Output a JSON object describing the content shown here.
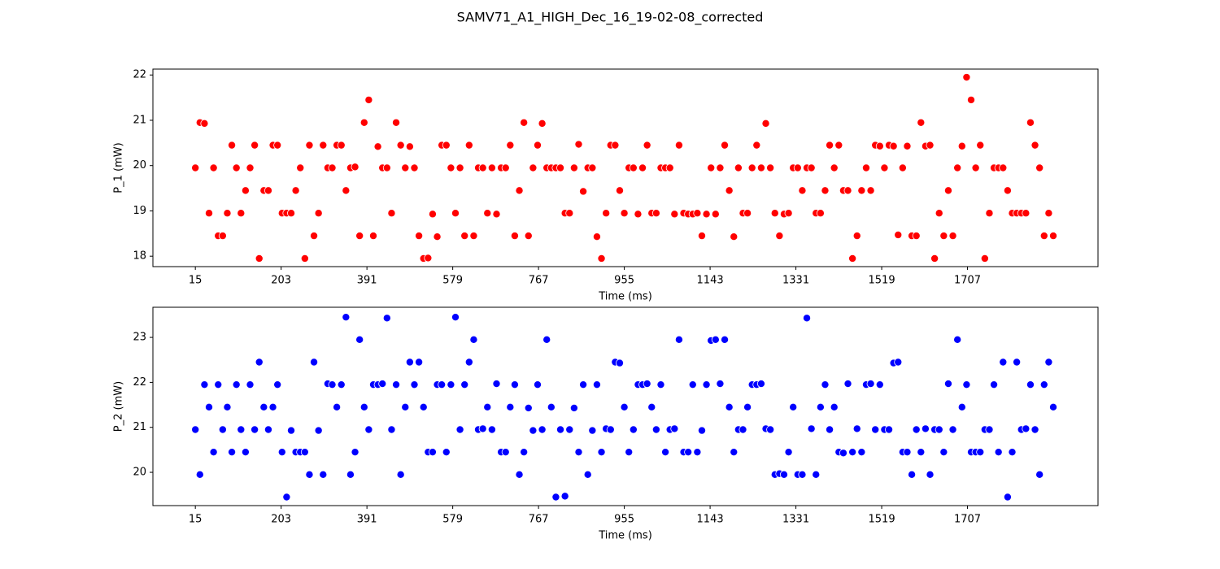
{
  "title": "SAMV71_A1_HIGH_Dec_16_19-02-08_corrected",
  "chart_data": [
    {
      "type": "scatter",
      "xlabel": "Time (ms)",
      "ylabel": "P_1 (mW)",
      "color": "#ff0000",
      "xlim": [
        -78,
        1993
      ],
      "ylim": [
        17.77,
        22.13
      ],
      "xticks": [
        15,
        203,
        391,
        579,
        767,
        955,
        1143,
        1331,
        1519,
        1707
      ],
      "yticks": [
        18,
        19,
        20,
        21,
        22
      ],
      "x": [
        15,
        25,
        35,
        45,
        55,
        65,
        75,
        85,
        95,
        105,
        115,
        125,
        135,
        145,
        155,
        165,
        175,
        185,
        195,
        205,
        215,
        225,
        235,
        245,
        255,
        265,
        275,
        285,
        295,
        305,
        315,
        325,
        335,
        345,
        355,
        365,
        375,
        385,
        395,
        405,
        415,
        425,
        435,
        445,
        455,
        465,
        475,
        485,
        495,
        505,
        515,
        525,
        535,
        545,
        555,
        565,
        575,
        585,
        595,
        605,
        615,
        625,
        635,
        645,
        655,
        665,
        675,
        685,
        695,
        705,
        715,
        725,
        735,
        745,
        755,
        765,
        775,
        785,
        795,
        805,
        815,
        825,
        835,
        845,
        855,
        865,
        875,
        885,
        895,
        905,
        915,
        925,
        935,
        945,
        955,
        965,
        975,
        985,
        995,
        1005,
        1015,
        1025,
        1035,
        1045,
        1055,
        1065,
        1075,
        1085,
        1095,
        1105,
        1115,
        1125,
        1135,
        1145,
        1155,
        1165,
        1175,
        1185,
        1195,
        1205,
        1215,
        1225,
        1235,
        1245,
        1255,
        1265,
        1275,
        1285,
        1295,
        1305,
        1315,
        1325,
        1335,
        1345,
        1355,
        1365,
        1375,
        1385,
        1395,
        1405,
        1415,
        1425,
        1435,
        1445,
        1455,
        1465,
        1475,
        1485,
        1495,
        1505,
        1515,
        1525,
        1535,
        1545,
        1555,
        1565,
        1575,
        1585,
        1595,
        1605,
        1615,
        1625,
        1635,
        1645,
        1655,
        1665,
        1675,
        1685,
        1695,
        1705,
        1715,
        1725,
        1735,
        1745,
        1755,
        1765,
        1775,
        1785,
        1795,
        1805,
        1815,
        1825,
        1835,
        1845,
        1855,
        1865,
        1875,
        1885,
        1895
      ],
      "values": [
        19.95,
        20.95,
        20.93,
        18.95,
        19.95,
        18.45,
        18.45,
        18.95,
        20.45,
        19.95,
        18.95,
        19.45,
        19.95,
        20.45,
        17.95,
        19.45,
        19.45,
        20.45,
        20.45,
        18.95,
        18.95,
        18.95,
        19.45,
        19.95,
        17.95,
        20.45,
        18.45,
        18.95,
        20.45,
        19.95,
        19.95,
        20.45,
        20.45,
        19.45,
        19.95,
        19.97,
        18.45,
        20.95,
        21.45,
        18.45,
        20.42,
        19.95,
        19.95,
        18.95,
        20.95,
        20.45,
        19.95,
        20.42,
        19.95,
        18.45,
        17.95,
        17.96,
        18.93,
        18.43,
        20.45,
        20.45,
        19.95,
        18.95,
        19.95,
        18.45,
        20.45,
        18.45,
        19.95,
        19.95,
        18.95,
        19.95,
        18.93,
        19.95,
        19.95,
        20.45,
        18.45,
        19.45,
        20.95,
        18.45,
        19.95,
        20.45,
        20.93,
        19.95,
        19.95,
        19.95,
        19.95,
        18.95,
        18.95,
        19.95,
        20.47,
        19.43,
        19.95,
        19.95,
        18.43,
        17.95,
        18.95,
        20.45,
        20.45,
        19.45,
        18.95,
        19.95,
        19.95,
        18.93,
        19.95,
        20.45,
        18.95,
        18.95,
        19.95,
        19.95,
        19.95,
        18.93,
        20.45,
        18.95,
        18.93,
        18.93,
        18.95,
        18.45,
        18.93,
        19.95,
        18.93,
        19.95,
        20.45,
        19.45,
        18.43,
        19.95,
        18.95,
        18.95,
        19.95,
        20.45,
        19.95,
        20.93,
        19.95,
        18.95,
        18.45,
        18.93,
        18.95,
        19.95,
        19.95,
        19.45,
        19.95,
        19.95,
        18.95,
        18.95,
        19.45,
        20.45,
        19.95,
        20.45,
        19.45,
        19.45,
        17.95,
        18.45,
        19.45,
        19.95,
        19.45,
        20.45,
        20.43,
        19.95,
        20.45,
        20.43,
        18.47,
        19.95,
        20.43,
        18.45,
        18.45,
        20.95,
        20.43,
        20.45,
        17.95,
        18.95,
        18.45,
        19.45,
        18.45,
        19.95,
        20.43,
        21.95,
        21.45,
        19.95,
        20.45,
        17.95,
        18.95,
        19.95,
        19.95,
        19.95,
        19.45,
        18.95,
        18.95,
        18.95,
        18.95,
        20.95,
        20.45,
        19.95,
        18.45,
        18.95,
        18.45
      ]
    },
    {
      "type": "scatter",
      "xlabel": "Time (ms)",
      "ylabel": "P_2 (mW)",
      "color": "#0000ff",
      "xlim": [
        -78,
        1993
      ],
      "ylim": [
        19.26,
        23.67
      ],
      "xticks": [
        15,
        203,
        391,
        579,
        767,
        955,
        1143,
        1331,
        1519,
        1707
      ],
      "yticks": [
        20,
        21,
        22,
        23
      ],
      "x": [
        15,
        25,
        35,
        45,
        55,
        65,
        75,
        85,
        95,
        105,
        115,
        125,
        135,
        145,
        155,
        165,
        175,
        185,
        195,
        205,
        215,
        225,
        235,
        245,
        255,
        265,
        275,
        285,
        295,
        305,
        315,
        325,
        335,
        345,
        355,
        365,
        375,
        385,
        395,
        405,
        415,
        425,
        435,
        445,
        455,
        465,
        475,
        485,
        495,
        505,
        515,
        525,
        535,
        545,
        555,
        565,
        575,
        585,
        595,
        605,
        615,
        625,
        635,
        645,
        655,
        665,
        675,
        685,
        695,
        705,
        715,
        725,
        735,
        745,
        755,
        765,
        775,
        785,
        795,
        805,
        815,
        825,
        835,
        845,
        855,
        865,
        875,
        885,
        895,
        905,
        915,
        925,
        935,
        945,
        955,
        965,
        975,
        985,
        995,
        1005,
        1015,
        1025,
        1035,
        1045,
        1055,
        1065,
        1075,
        1085,
        1095,
        1105,
        1115,
        1125,
        1135,
        1145,
        1155,
        1165,
        1175,
        1185,
        1195,
        1205,
        1215,
        1225,
        1235,
        1245,
        1255,
        1265,
        1275,
        1285,
        1295,
        1305,
        1315,
        1325,
        1335,
        1345,
        1355,
        1365,
        1375,
        1385,
        1395,
        1405,
        1415,
        1425,
        1435,
        1445,
        1455,
        1465,
        1475,
        1485,
        1495,
        1505,
        1515,
        1525,
        1535,
        1545,
        1555,
        1565,
        1575,
        1585,
        1595,
        1605,
        1615,
        1625,
        1635,
        1645,
        1655,
        1665,
        1675,
        1685,
        1695,
        1705,
        1715,
        1725,
        1735,
        1745,
        1755,
        1765,
        1775,
        1785,
        1795,
        1805,
        1815,
        1825,
        1835,
        1845,
        1855,
        1865,
        1875,
        1885,
        1895
      ],
      "values": [
        20.95,
        19.95,
        21.95,
        21.45,
        20.45,
        21.95,
        20.95,
        21.45,
        20.45,
        21.95,
        20.95,
        20.45,
        21.95,
        20.95,
        22.45,
        21.45,
        20.95,
        21.45,
        21.95,
        20.45,
        19.45,
        20.93,
        20.45,
        20.45,
        20.45,
        19.95,
        22.45,
        20.93,
        19.95,
        21.97,
        21.95,
        21.45,
        21.95,
        23.45,
        19.95,
        20.45,
        22.95,
        21.45,
        20.95,
        21.95,
        21.95,
        21.97,
        23.43,
        20.95,
        21.95,
        19.95,
        21.45,
        22.45,
        21.95,
        22.45,
        21.45,
        20.45,
        20.45,
        21.95,
        21.95,
        20.45,
        21.95,
        23.45,
        20.95,
        21.95,
        22.45,
        22.95,
        20.95,
        20.97,
        21.45,
        20.95,
        21.97,
        20.45,
        20.45,
        21.45,
        21.95,
        19.95,
        20.45,
        21.43,
        20.93,
        21.95,
        20.95,
        22.95,
        21.45,
        19.45,
        20.95,
        19.47,
        20.95,
        21.43,
        20.45,
        21.95,
        19.95,
        20.93,
        21.95,
        20.45,
        20.97,
        20.95,
        22.45,
        22.43,
        21.45,
        20.45,
        20.95,
        21.95,
        21.95,
        21.97,
        21.45,
        20.95,
        21.95,
        20.45,
        20.95,
        20.97,
        22.95,
        20.45,
        20.45,
        21.95,
        20.45,
        20.93,
        21.95,
        22.93,
        22.95,
        21.97,
        22.95,
        21.45,
        20.45,
        20.95,
        20.95,
        21.45,
        21.95,
        21.95,
        21.97,
        20.97,
        20.95,
        19.95,
        19.97,
        19.95,
        20.45,
        21.45,
        19.95,
        19.95,
        23.43,
        20.97,
        19.95,
        21.45,
        21.95,
        20.95,
        21.45,
        20.45,
        20.43,
        21.97,
        20.45,
        20.97,
        20.45,
        21.95,
        21.97,
        20.95,
        21.95,
        20.95,
        20.95,
        22.43,
        22.45,
        20.45,
        20.45,
        19.95,
        20.95,
        20.45,
        20.97,
        19.95,
        20.95,
        20.95,
        20.45,
        21.97,
        20.95,
        22.95,
        21.45,
        21.95,
        20.45,
        20.45,
        20.45,
        20.95,
        20.95,
        21.95,
        20.45,
        22.45,
        19.45,
        20.45,
        22.45,
        20.95,
        20.97,
        21.95,
        20.95,
        19.95,
        21.95,
        22.45,
        21.45
      ]
    }
  ]
}
